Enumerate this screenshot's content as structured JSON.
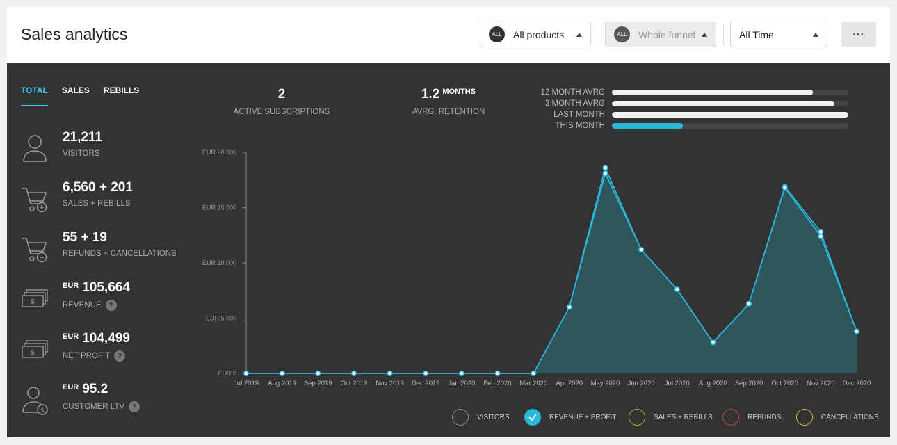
{
  "header": {
    "title": "Sales analytics",
    "products": {
      "badge": "ALL",
      "label": "All products"
    },
    "funnel": {
      "badge": "ALL",
      "label": "Whole funnel"
    },
    "period": {
      "label": "All Time"
    },
    "more_label": "···"
  },
  "tabs": [
    {
      "label": "TOTAL",
      "active": true
    },
    {
      "label": "SALES",
      "active": false
    },
    {
      "label": "REBILLS",
      "active": false
    }
  ],
  "metrics": {
    "visitors": {
      "value": "21,211",
      "label": "VISITORS",
      "icon": "user-icon"
    },
    "sales": {
      "value": "6,560 + 201",
      "label": "SALES + REBILLS",
      "icon": "cart-plus-icon"
    },
    "refunds": {
      "value": "55 + 19",
      "label": "REFUNDS + CANCELLATIONS",
      "icon": "cart-minus-icon"
    },
    "revenue": {
      "currency": "EUR",
      "value": "105,664",
      "label": "REVENUE",
      "help": "?",
      "icon": "cash-stack-icon"
    },
    "profit": {
      "currency": "EUR",
      "value": "104,499",
      "label": "NET PROFIT",
      "help": "?",
      "icon": "cash-stack-icon"
    },
    "ltv": {
      "currency": "EUR",
      "value": "95.2",
      "label": "CUSTOMER LTV",
      "help": "?",
      "icon": "user-dollar-icon"
    }
  },
  "kpis": {
    "subscriptions": {
      "value": "2",
      "label": "ACTIVE SUBSCRIPTIONS"
    },
    "retention": {
      "value": "1.2",
      "unit": "MONTHS",
      "label": "AVRG. RETENTION"
    }
  },
  "progress": [
    {
      "label": "12 MONTH AVRG",
      "fraction": 0.85,
      "color": "#f2f2f2"
    },
    {
      "label": "3 MONTH AVRG",
      "fraction": 0.94,
      "color": "#f2f2f2"
    },
    {
      "label": "LAST MONTH",
      "fraction": 1.0,
      "color": "#f2f2f2"
    },
    {
      "label": "THIS MONTH",
      "fraction": 0.3,
      "color": "#2ab9dc"
    }
  ],
  "chart_data": {
    "type": "area",
    "x": [
      "Jul 2019",
      "Aug 2019",
      "Sep 2019",
      "Oct 2019",
      "Nov 2019",
      "Dec 2019",
      "Jan 2020",
      "Feb 2020",
      "Mar 2020",
      "Apr 2020",
      "May 2020",
      "Jun 2020",
      "Jul 2020",
      "Aug 2020",
      "Sep 2020",
      "Oct 2020",
      "Nov 2020",
      "Dec 2020"
    ],
    "y_ticks": [
      "EUR 0",
      "EUR 5,000",
      "EUR 10,000",
      "EUR 15,000",
      "EUR 20,000"
    ],
    "ylim": [
      0,
      20000
    ],
    "series": [
      {
        "name": "REVENUE",
        "values": [
          0,
          0,
          0,
          0,
          0,
          0,
          0,
          0,
          0,
          6000,
          18600,
          11200,
          7600,
          2800,
          6300,
          16900,
          12800,
          3800
        ]
      },
      {
        "name": "PROFIT",
        "values": [
          0,
          0,
          0,
          0,
          0,
          0,
          0,
          0,
          0,
          6000,
          18100,
          11200,
          7600,
          2800,
          6300,
          16800,
          12400,
          3800
        ]
      }
    ],
    "colors": {
      "line": "#2ab9dc",
      "fill": "#2f5860",
      "axis": "#888888"
    }
  },
  "legend": [
    {
      "label": "VISITORS",
      "ring": "#888888",
      "checked": false
    },
    {
      "label": "REVENUE + PROFIT",
      "ring": "#2ab9dc",
      "checked": true
    },
    {
      "label": "SALES + REBILLS",
      "ring": "#b5b53a",
      "checked": false
    },
    {
      "label": "REFUNDS",
      "ring": "#c04b4b",
      "checked": false
    },
    {
      "label": "CANCELLATIONS",
      "ring": "#d6b630",
      "checked": false
    }
  ]
}
